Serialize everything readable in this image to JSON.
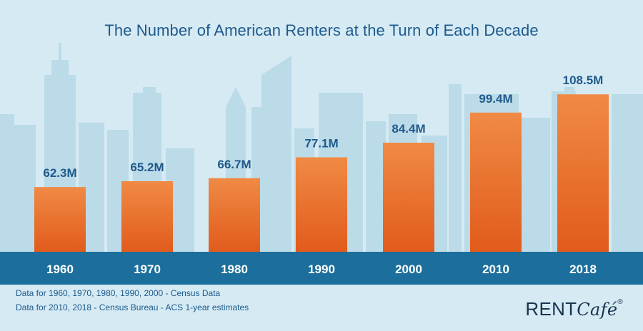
{
  "chart_data": {
    "type": "bar",
    "title": "The Number of American Renters at the Turn of Each Decade",
    "categories": [
      "1960",
      "1970",
      "1980",
      "1990",
      "2000",
      "2010",
      "2018"
    ],
    "values": [
      62.3,
      65.2,
      66.7,
      77.1,
      84.4,
      99.4,
      108.5
    ],
    "labels": [
      "62.3M",
      "65.2M",
      "66.7M",
      "77.1M",
      "84.4M",
      "99.4M",
      "108.5M"
    ],
    "unit": "M",
    "ylabel": "",
    "xlabel": "",
    "ylim": [
      30,
      110
    ]
  },
  "footnotes": {
    "line1": "Data for 1960, 1970, 1980, 1990, 2000 - Census Data",
    "line2": "Data for 2010, 2018 - Census Bureau - ACS 1-year estimates"
  },
  "logo": {
    "rent": "RENT",
    "cafe": "Café",
    "mark": "®"
  },
  "colors": {
    "bar_top": "#f08a45",
    "bar_bottom": "#e15b1c",
    "axis_band": "#1c6f9c",
    "label": "#1f5a8c",
    "skyline": "#b6d8e6",
    "background": "#d5eaf3"
  }
}
